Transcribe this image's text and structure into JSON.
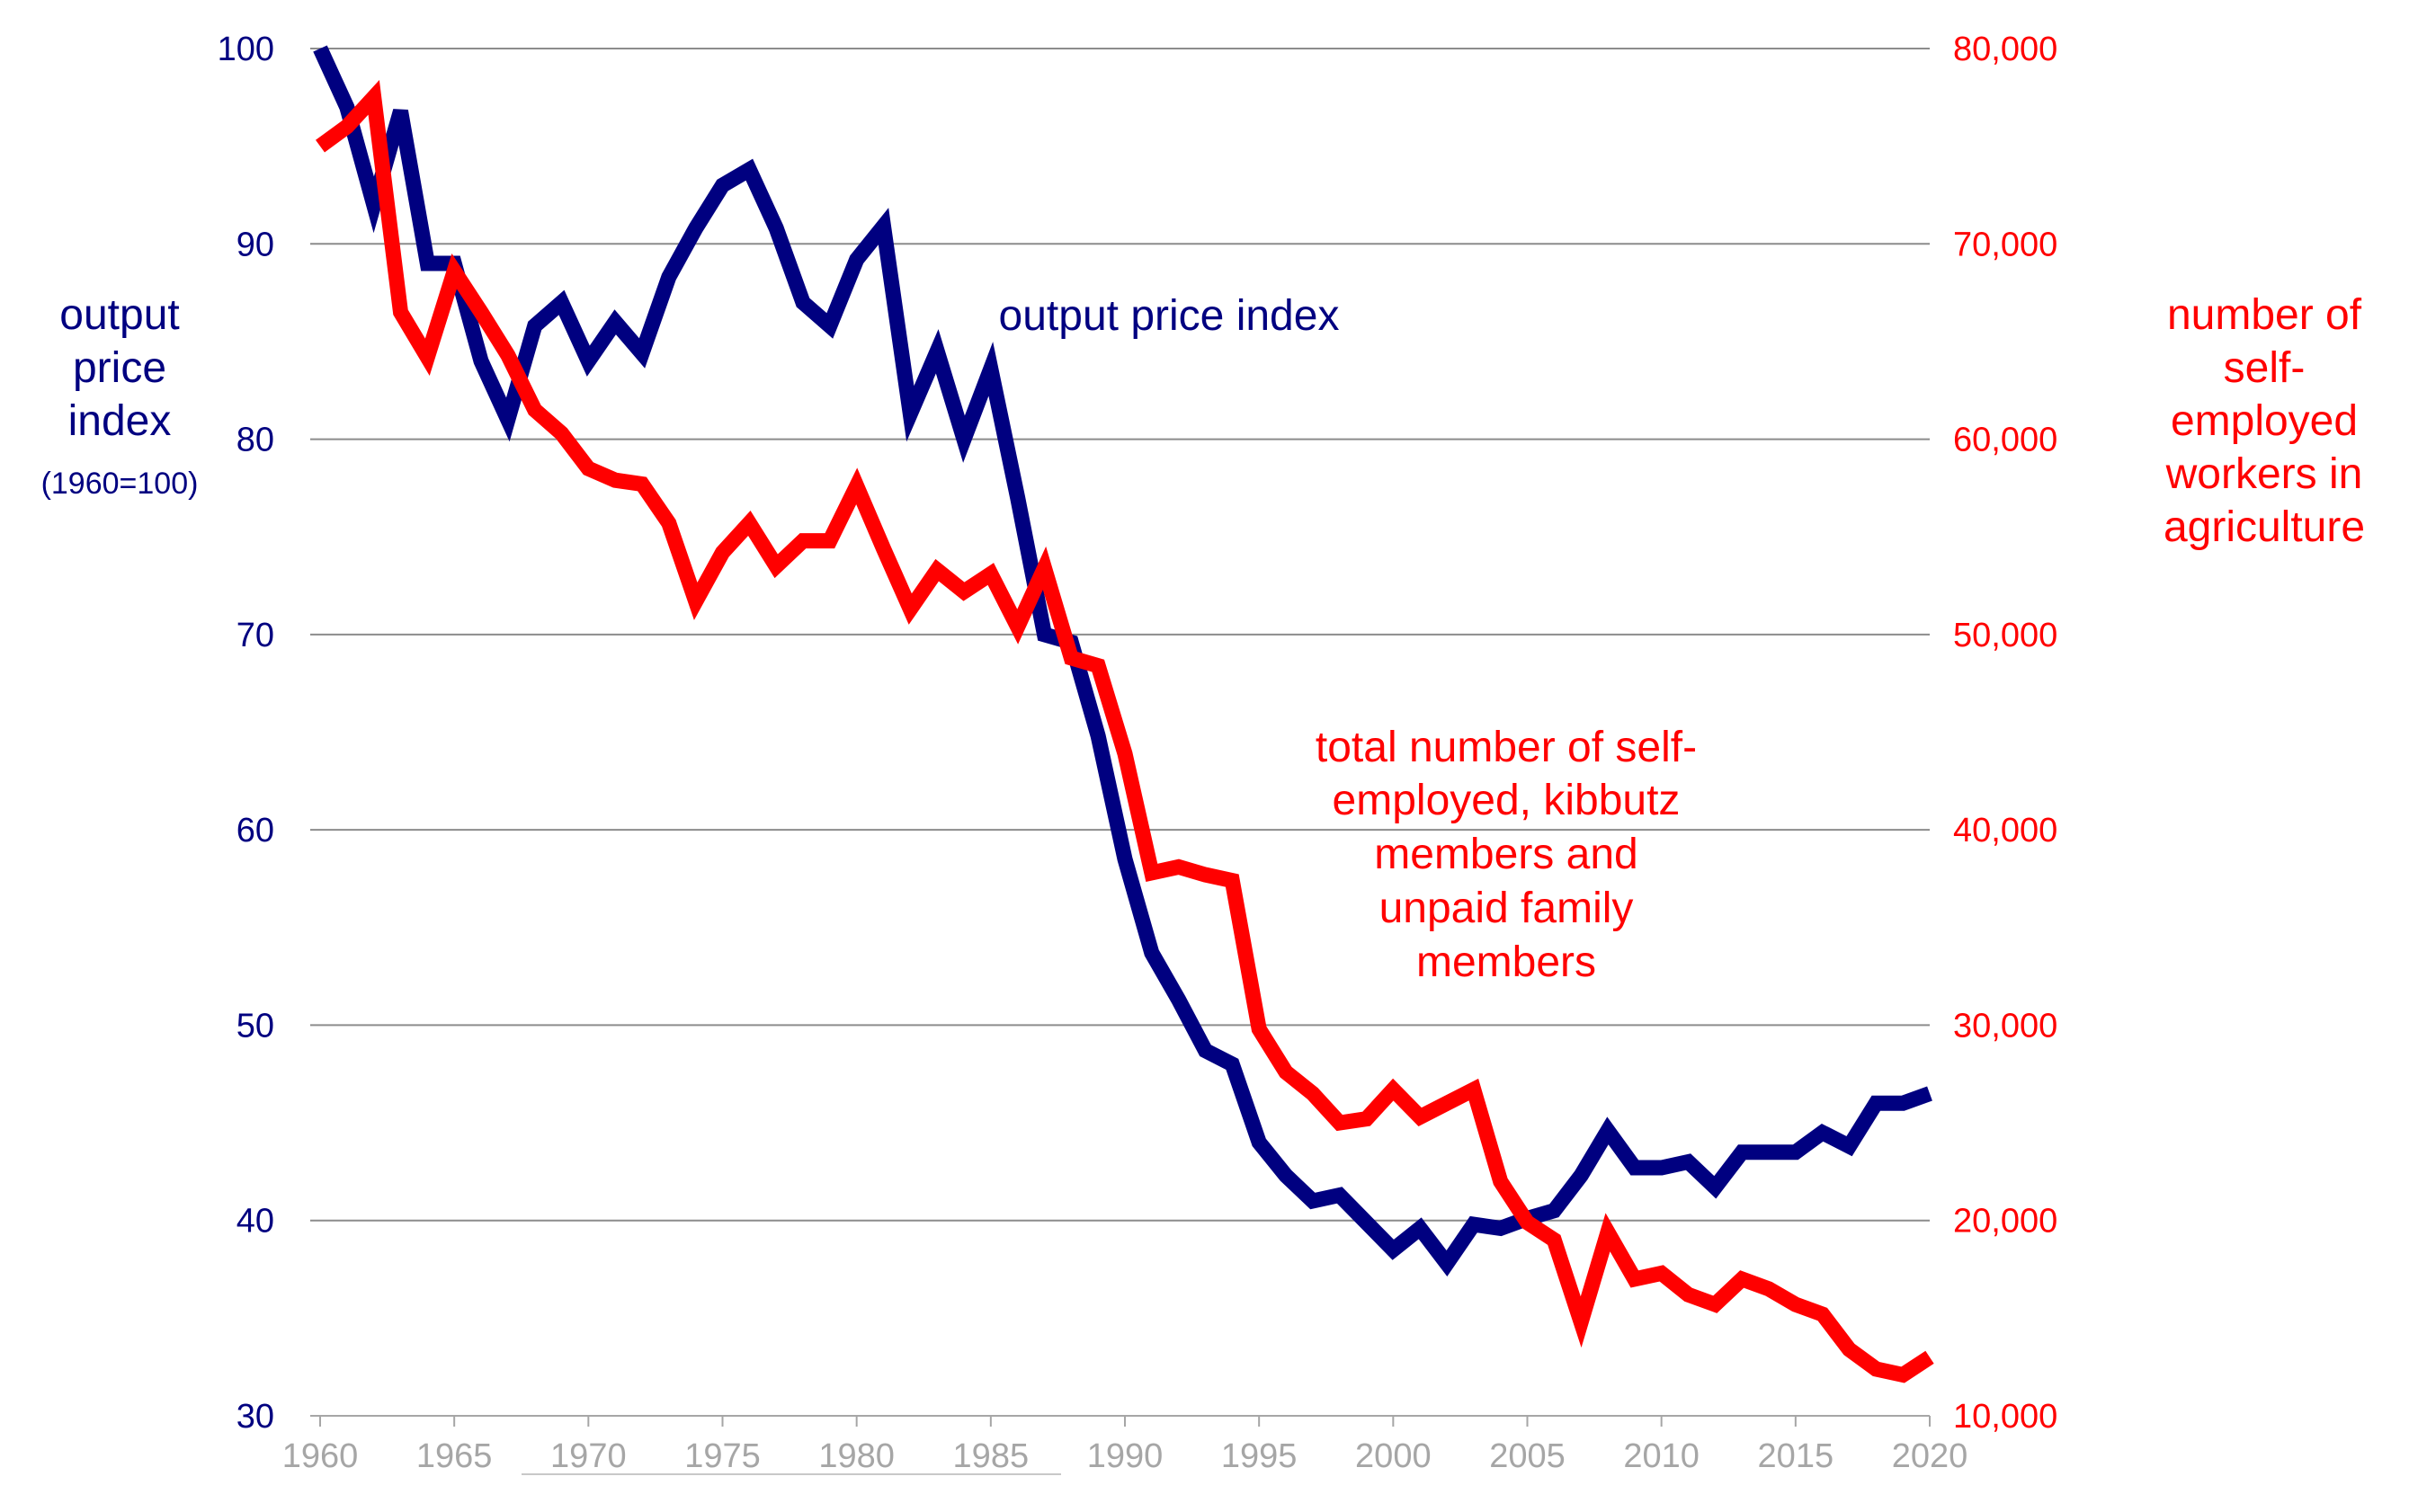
{
  "chart_data": {
    "type": "line",
    "x_range": [
      1960,
      2020
    ],
    "x_ticks": [
      "1960",
      "1965",
      "1970",
      "1975",
      "1980",
      "1985",
      "1990",
      "1995",
      "2000",
      "2005",
      "2010",
      "2015",
      "2020"
    ],
    "y_left": {
      "range": [
        30,
        100
      ],
      "ticks": [
        "30",
        "40",
        "50",
        "60",
        "70",
        "80",
        "90",
        "100"
      ],
      "label": [
        "output",
        "price",
        "index"
      ],
      "sublabel": "(1960=100)",
      "color": "#000080"
    },
    "y_right": {
      "range": [
        10000,
        80000
      ],
      "ticks": [
        "10,000",
        "20,000",
        "30,000",
        "40,000",
        "50,000",
        "60,000",
        "70,000",
        "80,000"
      ],
      "label": [
        "number of",
        "self-",
        "employed",
        "workers in",
        "agriculture"
      ],
      "color": "#ff0000"
    },
    "series": [
      {
        "name": "output price index",
        "axis": "left",
        "color": "#000080",
        "annotation": [
          "output price index"
        ],
        "x": [
          1960,
          1961,
          1962,
          1963,
          1964,
          1965,
          1966,
          1967,
          1968,
          1969,
          1970,
          1971,
          1972,
          1973,
          1974,
          1975,
          1976,
          1977,
          1978,
          1979,
          1980,
          1981,
          1982,
          1983,
          1984,
          1985,
          1986,
          1987,
          1988,
          1989,
          1990,
          1991,
          1992,
          1993,
          1994,
          1995,
          1996,
          1997,
          1998,
          1999,
          2000,
          2001,
          2002,
          2003,
          2004,
          2005,
          2006,
          2007,
          2008,
          2009,
          2010,
          2011,
          2012,
          2013,
          2014,
          2015,
          2016,
          2017,
          2018,
          2019,
          2020
        ],
        "values": [
          100,
          97,
          92,
          96.8,
          89,
          89,
          84,
          81,
          85.8,
          87,
          84,
          86,
          84.4,
          88.3,
          90.8,
          93,
          93.8,
          90.8,
          87,
          85.8,
          89.2,
          90.9,
          81.3,
          84.5,
          80,
          83.6,
          77,
          70,
          69.6,
          64.8,
          58.5,
          53.7,
          51.3,
          48.7,
          48,
          44,
          42.3,
          41,
          41.3,
          39.9,
          38.5,
          39.6,
          37.8,
          39.8,
          39.6,
          40.1,
          40.5,
          42.3,
          44.6,
          42.7,
          42.7,
          43,
          41.7,
          43.5,
          43.5,
          43.5,
          44.5,
          43.8,
          46,
          46,
          46.5
        ]
      },
      {
        "name": "total number of self-employed, kibbutz members and unpaid family members",
        "axis": "right",
        "color": "#ff0000",
        "annotation": [
          "total number of self-",
          "employed, kibbutz",
          "members and",
          "unpaid family",
          "members"
        ],
        "x": [
          1960,
          1961,
          1962,
          1963,
          1964,
          1965,
          1966,
          1967,
          1968,
          1969,
          1970,
          1971,
          1972,
          1973,
          1974,
          1975,
          1976,
          1977,
          1978,
          1979,
          1980,
          1981,
          1982,
          1983,
          1984,
          1985,
          1986,
          1987,
          1988,
          1989,
          1990,
          1991,
          1992,
          1993,
          1994,
          1995,
          1996,
          1997,
          1998,
          1999,
          2000,
          2001,
          2002,
          2003,
          2004,
          2005,
          2006,
          2007,
          2008,
          2009,
          2010,
          2011,
          2012,
          2013,
          2014,
          2015,
          2016,
          2017,
          2018,
          2019,
          2020
        ],
        "values": [
          75000,
          76000,
          77500,
          66500,
          64200,
          68600,
          66500,
          64300,
          61500,
          60300,
          58500,
          57900,
          57700,
          55700,
          51700,
          54200,
          55700,
          53500,
          54800,
          54800,
          57600,
          54400,
          51300,
          53300,
          52200,
          53100,
          50400,
          53400,
          48800,
          48400,
          43900,
          37800,
          38100,
          37700,
          37400,
          29800,
          27600,
          26500,
          25000,
          25200,
          26700,
          25300,
          26000,
          26700,
          22000,
          19900,
          19000,
          14800,
          19400,
          17000,
          17300,
          16200,
          15700,
          17000,
          16500,
          15700,
          15200,
          13400,
          12400,
          12100,
          13000
        ]
      }
    ],
    "grid": true
  }
}
